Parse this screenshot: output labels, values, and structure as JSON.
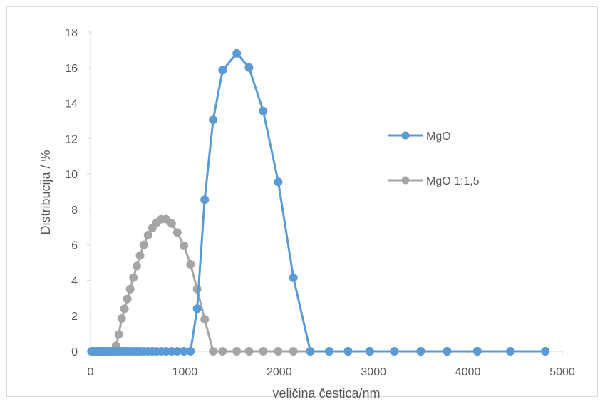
{
  "chart_data": {
    "type": "scatter",
    "title": "",
    "xlabel": "veličina čestica/nm",
    "ylabel": "Distribucija / %",
    "xlim": [
      0,
      5000
    ],
    "ylim": [
      0,
      18
    ],
    "xticks": [
      0,
      1000,
      2000,
      3000,
      4000,
      5000
    ],
    "yticks": [
      0,
      2,
      4,
      6,
      8,
      10,
      12,
      14,
      16,
      18
    ],
    "grid": false,
    "legend_position": "right",
    "series": [
      {
        "name": "MgO",
        "color": "#5b9bd5",
        "marker": "circle",
        "line": true,
        "x": [
          10,
          30,
          50,
          70,
          90,
          110,
          130,
          150,
          170,
          190,
          210,
          240,
          270,
          300,
          330,
          360,
          390,
          420,
          455,
          490,
          525,
          565,
          610,
          655,
          700,
          750,
          800,
          860,
          920,
          990,
          1060,
          1130,
          1210,
          1300,
          1400,
          1550,
          1680,
          1830,
          1990,
          2150,
          2330,
          2530,
          2730,
          2960,
          3220,
          3500,
          3780,
          4100,
          4450,
          4820
        ],
        "y": [
          0,
          0,
          0,
          0,
          0,
          0,
          0,
          0,
          0,
          0,
          0,
          0,
          0,
          0,
          0,
          0,
          0,
          0,
          0,
          0,
          0,
          0,
          0,
          0,
          0,
          0,
          0,
          0,
          0,
          0,
          0,
          2.4,
          8.55,
          13.05,
          15.85,
          16.8,
          16.0,
          13.55,
          9.55,
          4.15,
          0,
          0,
          0,
          0,
          0,
          0,
          0,
          0,
          0,
          0
        ]
      },
      {
        "name": "MgO 1:1,5",
        "color": "#a5a5a5",
        "marker": "circle",
        "line": true,
        "x": [
          10,
          30,
          50,
          70,
          90,
          110,
          130,
          150,
          170,
          190,
          210,
          240,
          270,
          300,
          330,
          360,
          390,
          420,
          455,
          490,
          525,
          565,
          610,
          655,
          700,
          750,
          800,
          860,
          920,
          990,
          1060,
          1130,
          1210,
          1300,
          1400,
          1550,
          1680,
          1830,
          1990,
          2150,
          2330,
          2530,
          2730,
          2960,
          3220,
          3500,
          3780,
          4100,
          4450,
          4820
        ],
        "y": [
          0,
          0,
          0,
          0,
          0,
          0,
          0,
          0,
          0,
          0,
          0,
          0,
          0.3,
          0.95,
          1.85,
          2.4,
          2.95,
          3.5,
          4.15,
          4.8,
          5.4,
          6.0,
          6.55,
          6.95,
          7.25,
          7.45,
          7.45,
          7.2,
          6.7,
          5.95,
          4.9,
          3.5,
          1.8,
          0,
          0,
          0,
          0,
          0,
          0,
          0,
          0,
          0,
          0,
          0,
          0,
          0,
          0,
          0,
          0,
          0
        ]
      }
    ]
  }
}
